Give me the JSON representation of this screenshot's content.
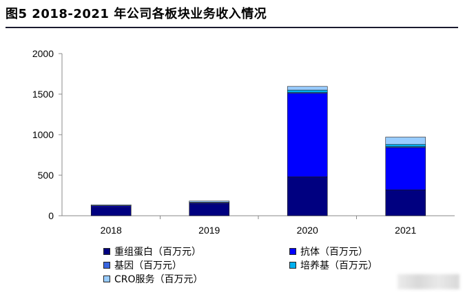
{
  "figure": {
    "title": "图5  2018-2021 年公司各板块业务收入情况"
  },
  "chart_data": {
    "type": "bar",
    "stacked": true,
    "title": "图5  2018-2021 年公司各板块业务收入情况",
    "categories": [
      "2018",
      "2019",
      "2020",
      "2021"
    ],
    "ylim": [
      0,
      2000
    ],
    "yticks": [
      0,
      500,
      1000,
      1500,
      2000
    ],
    "ytick_labels": [
      "0",
      "500",
      "1000",
      "1500",
      "2000"
    ],
    "grid": false,
    "legend_position": "bottom",
    "series": [
      {
        "name": "重组蛋白（百万元）",
        "color": "#000080",
        "values": [
          105,
          145,
          480,
          320
        ]
      },
      {
        "name": "抗体（百万元）",
        "color": "#0000ff",
        "values": [
          15,
          12,
          1030,
          520
        ]
      },
      {
        "name": "基因（百万元）",
        "color": "#3a66e0",
        "values": [
          3,
          3,
          10,
          12
        ]
      },
      {
        "name": "培养基（百万元）",
        "color": "#00b0f0",
        "values": [
          2,
          5,
          30,
          28
        ]
      },
      {
        "name": "CRO服务（百万元）",
        "color": "#99ccff",
        "values": [
          10,
          17,
          45,
          90
        ]
      }
    ]
  }
}
